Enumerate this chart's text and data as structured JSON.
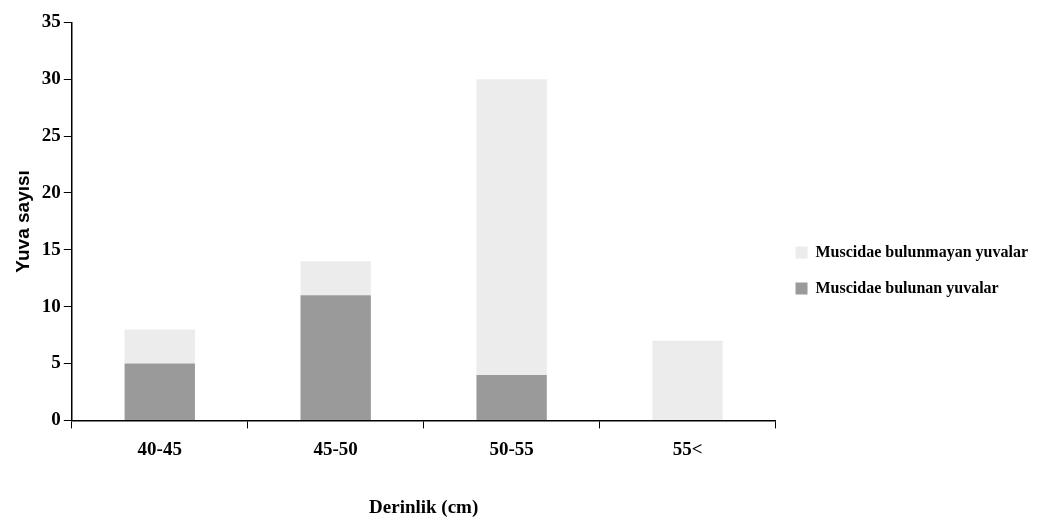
{
  "chart_data": {
    "type": "bar",
    "stacked": true,
    "xlabel": "Derinlik (cm)",
    "ylabel": "Yuva sayısı",
    "categories": [
      "40-45",
      "45-50",
      "50-55",
      "55<"
    ],
    "series": [
      {
        "name": "Muscidae bulunan yuvalar",
        "color": "#9a9a9a",
        "values": [
          5,
          11,
          4,
          0
        ]
      },
      {
        "name": "Muscidae bulunmayan yuvalar",
        "color": "#ececec",
        "values": [
          3,
          3,
          26,
          7
        ]
      }
    ],
    "ylim": [
      0,
      35
    ],
    "yticks": [
      0,
      5,
      10,
      15,
      20,
      25,
      30,
      35
    ],
    "grid": false,
    "legend": "right"
  }
}
